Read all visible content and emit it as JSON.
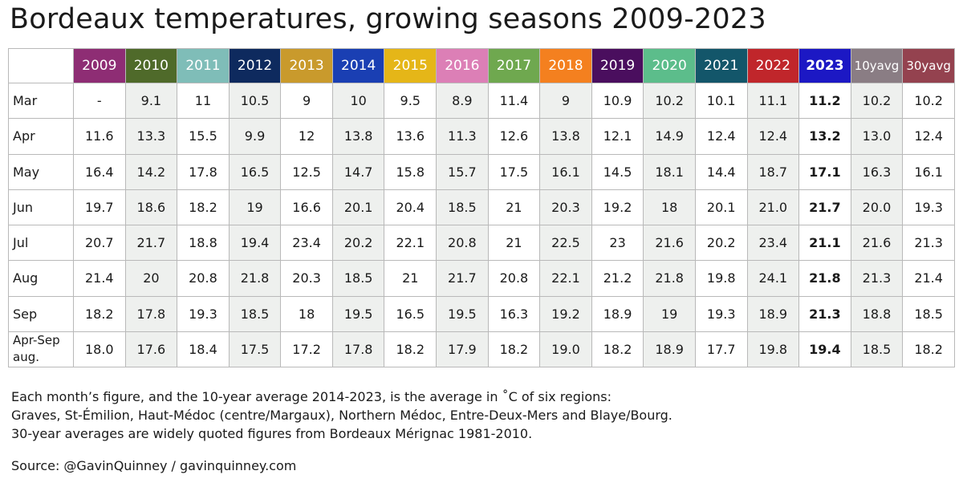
{
  "title": "Bordeaux temperatures, growing seasons 2009-2023",
  "notes": [
    "Each month’s figure, and the 10-year average 2014-2023, is the average in ˚C of six regions:",
    "Graves, St-Émilion, Haut-Médoc (centre/Margaux), Northern Médoc, Entre-Deux-Mers and Blaye/Bourg.",
    "30-year averages are widely quoted figures from Bordeaux Mérignac 1981-2010."
  ],
  "source": "Source: @GavinQuinney / gavinquinney.com",
  "colors": {
    "2009": "#8e2d74",
    "2010": "#4f6a2a",
    "2011": "#7fbdb8",
    "2012": "#0e2a5e",
    "2013": "#c99a2c",
    "2014": "#1a3fb3",
    "2015": "#e5b618",
    "2016": "#dc7fb6",
    "2017": "#6fa84f",
    "2018": "#f4801f",
    "2019": "#4a0e5e",
    "2020": "#5cbd8b",
    "2021": "#13566a",
    "2022": "#c0262b",
    "2023": "#1c18c4",
    "10yavg": "#8a7d84",
    "30yavg": "#94424f"
  },
  "chart_data": {
    "type": "table",
    "title": "Bordeaux temperatures, growing seasons 2009-2023",
    "columns": [
      {
        "key": "2009",
        "label": "2009"
      },
      {
        "key": "2010",
        "label": "2010"
      },
      {
        "key": "2011",
        "label": "2011"
      },
      {
        "key": "2012",
        "label": "2012"
      },
      {
        "key": "2013",
        "label": "2013"
      },
      {
        "key": "2014",
        "label": "2014"
      },
      {
        "key": "2015",
        "label": "2015"
      },
      {
        "key": "2016",
        "label": "2016"
      },
      {
        "key": "2017",
        "label": "2017"
      },
      {
        "key": "2018",
        "label": "2018"
      },
      {
        "key": "2019",
        "label": "2019"
      },
      {
        "key": "2020",
        "label": "2020"
      },
      {
        "key": "2021",
        "label": "2021"
      },
      {
        "key": "2022",
        "label": "2022"
      },
      {
        "key": "2023",
        "label": "2023",
        "highlight": true
      },
      {
        "key": "10yavg",
        "label": "10yavg",
        "average": true
      },
      {
        "key": "30yavg",
        "label": "30yavg",
        "average": true
      }
    ],
    "rows": [
      {
        "label": "Mar",
        "values": [
          "-",
          "9.1",
          "11",
          "10.5",
          "9",
          "10",
          "9.5",
          "8.9",
          "11.4",
          "9",
          "10.9",
          "10.2",
          "10.1",
          "11.1",
          "11.2",
          "10.2",
          "10.2"
        ]
      },
      {
        "label": "Apr",
        "values": [
          "11.6",
          "13.3",
          "15.5",
          "9.9",
          "12",
          "13.8",
          "13.6",
          "11.3",
          "12.6",
          "13.8",
          "12.1",
          "14.9",
          "12.4",
          "12.4",
          "13.2",
          "13.0",
          "12.4"
        ]
      },
      {
        "label": "May",
        "values": [
          "16.4",
          "14.2",
          "17.8",
          "16.5",
          "12.5",
          "14.7",
          "15.8",
          "15.7",
          "17.5",
          "16.1",
          "14.5",
          "18.1",
          "14.4",
          "18.7",
          "17.1",
          "16.3",
          "16.1"
        ]
      },
      {
        "label": "Jun",
        "values": [
          "19.7",
          "18.6",
          "18.2",
          "19",
          "16.6",
          "20.1",
          "20.4",
          "18.5",
          "21",
          "20.3",
          "19.2",
          "18",
          "20.1",
          "21.0",
          "21.7",
          "20.0",
          "19.3"
        ]
      },
      {
        "label": "Jul",
        "values": [
          "20.7",
          "21.7",
          "18.8",
          "19.4",
          "23.4",
          "20.2",
          "22.1",
          "20.8",
          "21",
          "22.5",
          "23",
          "21.6",
          "20.2",
          "23.4",
          "21.1",
          "21.6",
          "21.3"
        ]
      },
      {
        "label": "Aug",
        "values": [
          "21.4",
          "20",
          "20.8",
          "21.8",
          "20.3",
          "18.5",
          "21",
          "21.7",
          "20.8",
          "22.1",
          "21.2",
          "21.8",
          "19.8",
          "24.1",
          "21.8",
          "21.3",
          "21.4"
        ]
      },
      {
        "label": "Sep",
        "values": [
          "18.2",
          "17.8",
          "19.3",
          "18.5",
          "18",
          "19.5",
          "16.5",
          "19.5",
          "16.3",
          "19.2",
          "18.9",
          "19",
          "19.3",
          "18.9",
          "21.3",
          "18.8",
          "18.5"
        ]
      },
      {
        "label": "Apr-Sep aug.",
        "two_line": true,
        "values": [
          "18.0",
          "17.6",
          "18.4",
          "17.5",
          "17.2",
          "17.8",
          "18.2",
          "17.9",
          "18.2",
          "19.0",
          "18.2",
          "18.9",
          "17.7",
          "19.8",
          "19.4",
          "18.5",
          "18.2"
        ]
      }
    ]
  }
}
